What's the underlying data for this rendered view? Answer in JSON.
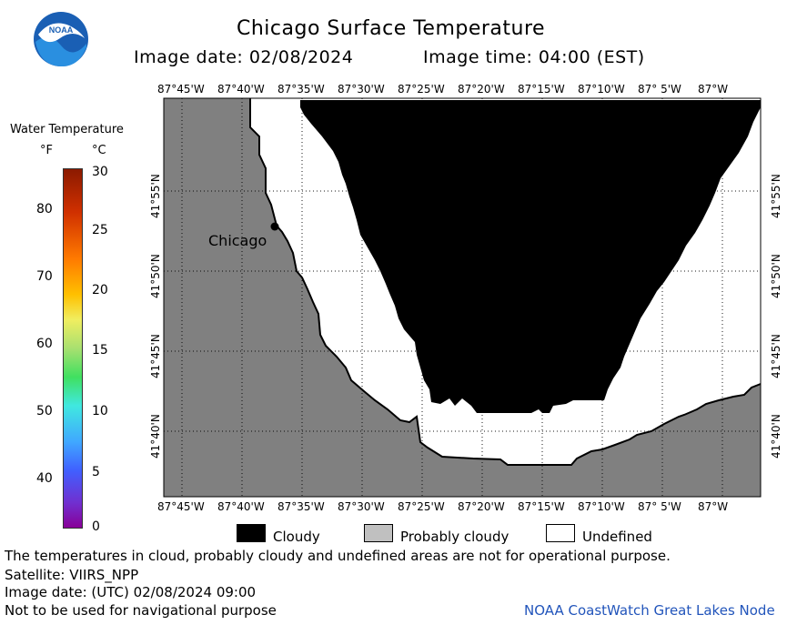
{
  "header": {
    "title": "Chicago Surface Temperature",
    "date_label": "Image date: 02/08/2024",
    "time_label": "Image time: 04:00 (EST)",
    "logo_text": "NOAA"
  },
  "colorbar": {
    "title": "Water Temperature",
    "unit_f": "°F",
    "unit_c": "°C",
    "f_ticks": [
      "80",
      "70",
      "60",
      "50",
      "40"
    ],
    "c_ticks": [
      "30",
      "25",
      "20",
      "15",
      "10",
      "5",
      "0"
    ]
  },
  "map": {
    "lon_ticks": [
      "87°45'W",
      "87°40'W",
      "87°35'W",
      "87°30'W",
      "87°25'W",
      "87°20'W",
      "87°15'W",
      "87°10'W",
      "87° 5'W",
      "87°W"
    ],
    "lat_ticks": [
      "41°55'N",
      "41°50'N",
      "41°45'N",
      "41°40'N"
    ],
    "city_label": "Chicago",
    "colors": {
      "land": "#808080",
      "cloudy": "#000000",
      "undefined": "#ffffff",
      "probably_cloudy": "#c0c0c0"
    }
  },
  "legend": {
    "cloudy": "Cloudy",
    "probably_cloudy": "Probably cloudy",
    "undefined": "Undefined"
  },
  "footer": {
    "disclaimer": "The temperatures in cloud, probably cloudy and undefined areas are not for operational purpose.",
    "satellite": "Satellite: VIIRS_NPP",
    "utc_date": "Image date: (UTC) 02/08/2024  09:00",
    "nav_warning": "Not to be used for navigational purpose",
    "credit": "NOAA CoastWatch Great Lakes Node",
    "credit_color": "#2255bb"
  }
}
